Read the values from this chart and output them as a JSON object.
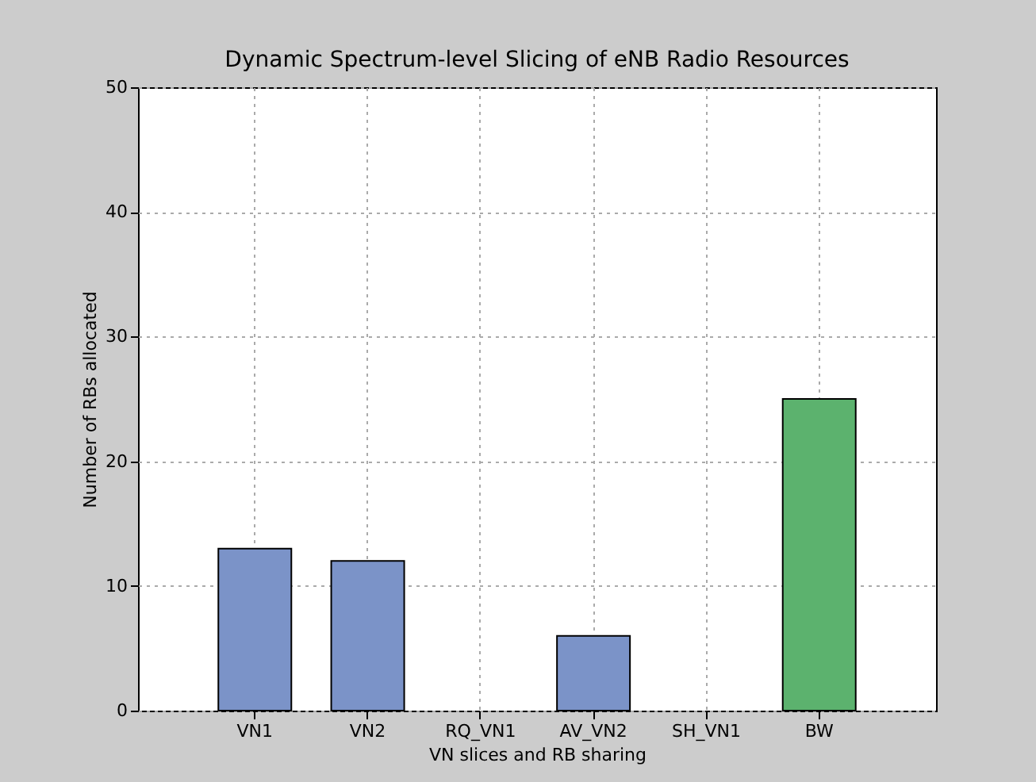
{
  "chart_data": {
    "type": "bar",
    "title": "Dynamic Spectrum-level Slicing of eNB Radio Resources",
    "xlabel": "VN slices and RB sharing",
    "ylabel": "Number of RBs allocated",
    "categories": [
      "VN1",
      "VN2",
      "RQ_VN1",
      "AV_VN2",
      "SH_VN1",
      "BW"
    ],
    "values": [
      13,
      12,
      0,
      6,
      0,
      25
    ],
    "colors": [
      "#7b93c8",
      "#7b93c8",
      "#7b93c8",
      "#7b93c8",
      "#7b93c8",
      "#5cb26e"
    ],
    "ylim": [
      0,
      50
    ],
    "yticks": [
      0,
      10,
      20,
      30,
      40,
      50
    ],
    "grid": true,
    "legend": false
  }
}
